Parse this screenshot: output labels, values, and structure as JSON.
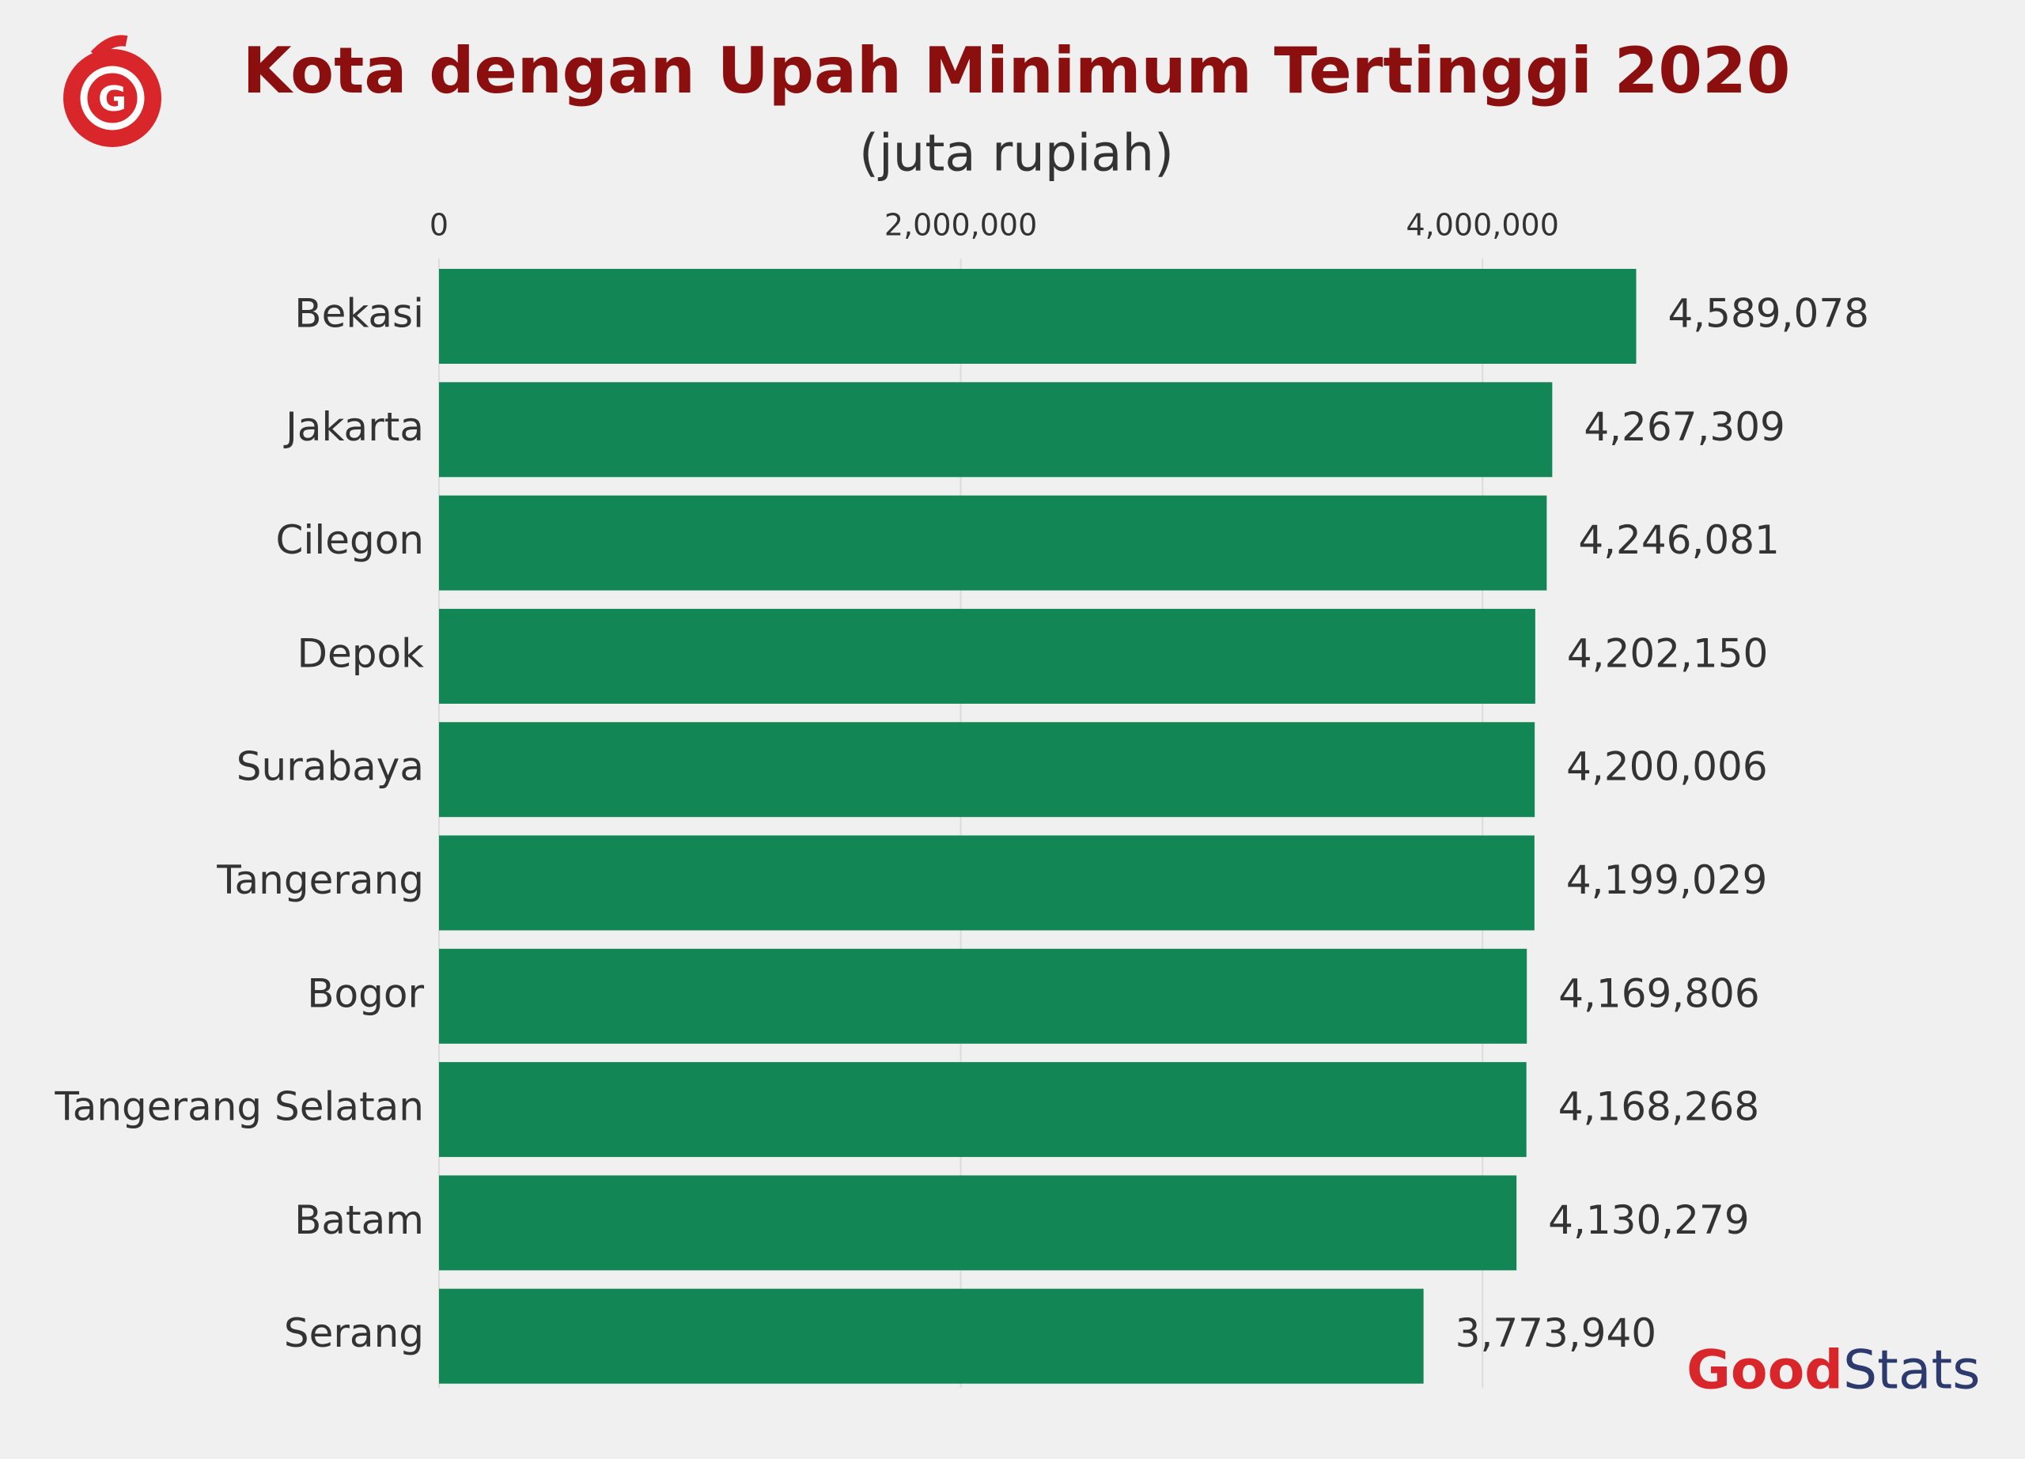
{
  "chart_data": {
    "type": "hbar",
    "title": "Kota dengan Upah Minimum Tertinggi 2020",
    "subtitle": "(juta rupiah)",
    "categories": [
      "Bekasi",
      "Jakarta",
      "Cilegon",
      "Depok",
      "Surabaya",
      "Tangerang",
      "Bogor",
      "Tangerang Selatan",
      "Batam",
      "Serang"
    ],
    "values": [
      4589078,
      4267309,
      4246081,
      4202150,
      4200006,
      4199029,
      4169806,
      4168268,
      4130279,
      3773940
    ],
    "value_labels": [
      "4,589,078",
      "4,267,309",
      "4,246,081",
      "4,202,150",
      "4,200,006",
      "4,199,029",
      "4,169,806",
      "4,168,268",
      "4,130,279",
      "3,773,940"
    ],
    "color": "#138656",
    "xlim": [
      0,
      5000000
    ],
    "xticks": [
      0,
      {
        "value": 2000000,
        "label": "2,000,000"
      },
      {
        "value": 4000000,
        "label": "4,000,000"
      }
    ],
    "grid": true,
    "watermark": [
      "Good",
      "Stats"
    ]
  }
}
